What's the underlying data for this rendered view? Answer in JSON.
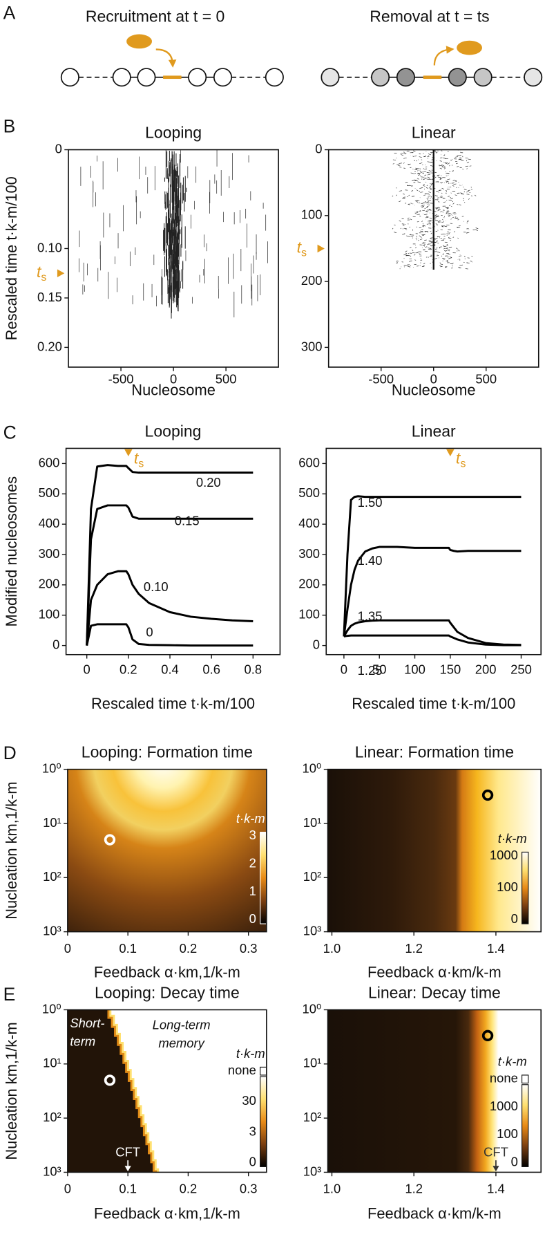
{
  "panel_labels": [
    "A",
    "B",
    "C",
    "D",
    "E"
  ],
  "schematic": {
    "left_title": "Recruitment at t = 0",
    "right_title": "Removal at t = ts"
  },
  "chart_data": [
    {
      "type": "raster",
      "title": "Looping",
      "xlabel": "Nucleosome",
      "ylabel": "Rescaled time t·k-m/100",
      "xlim": [
        -1000,
        1000
      ],
      "xticks": [
        -500,
        0,
        500
      ],
      "ylim": [
        0.22,
        0
      ],
      "yticks": [
        0,
        {
          "value": 0.1,
          "label": "0.10"
        },
        0.15,
        {
          "value": 0.2,
          "label": "0.20"
        }
      ],
      "annotations": [
        {
          "text": "t",
          "subscript": "s",
          "y": 0.125
        }
      ]
    },
    {
      "type": "raster",
      "title": "Linear",
      "xlabel": "Nucleosome",
      "xlim": [
        -1000,
        1000
      ],
      "xticks": [
        -500,
        0,
        500
      ],
      "ylim": [
        330,
        0
      ],
      "yticks": [
        0,
        100,
        200,
        300
      ],
      "annotations": [
        {
          "text": "t",
          "subscript": "s",
          "y": 150
        }
      ]
    },
    {
      "type": "line",
      "title": "Looping",
      "xlabel": "Rescaled time t·k-m/100",
      "ylabel": "Modified nucleosomes",
      "xlim": [
        -0.1,
        0.93
      ],
      "xticks": [
        0,
        0.2,
        0.4,
        0.6,
        0.8
      ],
      "ylim": [
        -30,
        650
      ],
      "yticks": [
        0,
        100,
        200,
        300,
        400,
        500,
        600
      ],
      "x": [
        0,
        0.02,
        0.05,
        0.1,
        0.15,
        0.19,
        0.2,
        0.22,
        0.25,
        0.3,
        0.4,
        0.5,
        0.6,
        0.7,
        0.8
      ],
      "series": [
        {
          "name": "0.20",
          "color": "#000000",
          "values": [
            0,
            450,
            590,
            595,
            592,
            592,
            585,
            572,
            570,
            570,
            570,
            570,
            570,
            570,
            570
          ]
        },
        {
          "name": "0.15",
          "color": "#000000",
          "values": [
            0,
            350,
            450,
            462,
            462,
            462,
            455,
            425,
            418,
            418,
            418,
            418,
            418,
            418,
            418
          ]
        },
        {
          "name": "0.10",
          "color": "#000000",
          "values": [
            0,
            150,
            200,
            235,
            245,
            245,
            235,
            200,
            170,
            140,
            110,
            95,
            88,
            83,
            80
          ]
        },
        {
          "name": "0",
          "color": "#000000",
          "values": [
            0,
            65,
            70,
            70,
            70,
            70,
            60,
            20,
            5,
            2,
            1,
            0,
            0,
            0,
            0
          ]
        }
      ],
      "annotations": [
        {
          "text": "t",
          "subscript": "s",
          "x": 0.2
        }
      ]
    },
    {
      "type": "line",
      "title": "Linear",
      "xlabel": "Rescaled time t·k-m/100",
      "xlim": [
        -25,
        278
      ],
      "xticks": [
        0,
        50,
        100,
        150,
        200,
        250
      ],
      "ylim": [
        -30,
        650
      ],
      "yticks": [
        0,
        100,
        200,
        300,
        400,
        500,
        600
      ],
      "x": [
        0,
        5,
        10,
        15,
        20,
        30,
        40,
        50,
        75,
        100,
        125,
        148,
        150,
        155,
        160,
        175,
        200,
        225,
        250
      ],
      "series": [
        {
          "name": "1.50",
          "color": "#000000",
          "values": [
            30,
            300,
            480,
            490,
            492,
            490,
            490,
            490,
            490,
            490,
            490,
            490,
            490,
            490,
            490,
            490,
            490,
            490,
            490
          ]
        },
        {
          "name": "1.40",
          "color": "#000000",
          "values": [
            30,
            120,
            200,
            250,
            280,
            310,
            320,
            325,
            325,
            322,
            322,
            322,
            315,
            312,
            310,
            312,
            312,
            312,
            312
          ]
        },
        {
          "name": "1.35",
          "color": "#000000",
          "values": [
            30,
            50,
            65,
            72,
            76,
            80,
            82,
            83,
            83,
            83,
            83,
            83,
            75,
            60,
            45,
            25,
            8,
            3,
            2
          ]
        },
        {
          "name": "1.25",
          "color": "#000000",
          "values": [
            30,
            32,
            33,
            33,
            33,
            33,
            33,
            33,
            33,
            33,
            33,
            33,
            30,
            25,
            20,
            10,
            3,
            1,
            1
          ]
        }
      ],
      "annotations": [
        {
          "text": "t",
          "subscript": "s",
          "x": 150
        }
      ]
    },
    {
      "type": "heatmap",
      "title": "Looping: Formation time",
      "xlabel": "Feedback α·km,1/k-m",
      "ylabel": "Nucleation km,1/k-m",
      "xlim": [
        0,
        0.33
      ],
      "xticks": [
        0,
        0.1,
        0.2,
        0.3
      ],
      "log_y": true,
      "ylim": [
        1000,
        1
      ],
      "yticks": [
        {
          "value": 1,
          "label": "10⁰"
        },
        {
          "value": 10,
          "label": "10¹"
        },
        {
          "value": 100,
          "label": "10²"
        },
        {
          "value": 1000,
          "label": "10³"
        }
      ],
      "colorbar": {
        "title": "t·k-m",
        "ticks": [
          3,
          2,
          1,
          0
        ]
      },
      "marker": {
        "x": 0.07,
        "y": 20
      }
    },
    {
      "type": "heatmap",
      "title": "Linear: Formation time",
      "xlabel": "Feedback α·km/k-m",
      "xlim": [
        0.99,
        1.51
      ],
      "xticks": [
        {
          "value": 1,
          "label": "1.0"
        },
        1.2,
        1.4
      ],
      "log_y": true,
      "ylim": [
        1000,
        1
      ],
      "yticks": [
        {
          "value": 1,
          "label": "10⁰"
        },
        {
          "value": 10,
          "label": "10¹"
        },
        {
          "value": 100,
          "label": "10²"
        },
        {
          "value": 1000,
          "label": "10³"
        }
      ],
      "colorbar": {
        "title": "t·k-m",
        "ticks": [
          1000,
          100,
          0
        ]
      },
      "marker": {
        "x": 1.38,
        "y": 3
      }
    },
    {
      "type": "heatmap",
      "title": "Looping: Decay time",
      "xlabel": "Feedback α·km,1/k-m",
      "ylabel": "Nucleation km,1/k-m",
      "xlim": [
        0,
        0.33
      ],
      "xticks": [
        0,
        0.1,
        0.2,
        0.3
      ],
      "log_y": true,
      "ylim": [
        1000,
        1
      ],
      "yticks": [
        {
          "value": 1,
          "label": "10⁰"
        },
        {
          "value": 10,
          "label": "10¹"
        },
        {
          "value": 100,
          "label": "10²"
        },
        {
          "value": 1000,
          "label": "10³"
        }
      ],
      "colorbar": {
        "title": "t·k-m",
        "ticks": [
          "none",
          30,
          3,
          0
        ]
      },
      "marker": {
        "x": 0.07,
        "y": 20
      },
      "region_labels": [
        [
          "Short-",
          "term"
        ],
        [
          "Long-term",
          "memory"
        ]
      ],
      "annotations": [
        {
          "text": "CFT",
          "x": 0.1
        }
      ]
    },
    {
      "type": "heatmap",
      "title": "Linear: Decay time",
      "xlabel": "Feedback α·km/k-m",
      "xlim": [
        0.99,
        1.51
      ],
      "xticks": [
        {
          "value": 1,
          "label": "1.0"
        },
        1.2,
        1.4
      ],
      "log_y": true,
      "ylim": [
        1000,
        1
      ],
      "yticks": [
        {
          "value": 1,
          "label": "10⁰"
        },
        {
          "value": 10,
          "label": "10¹"
        },
        {
          "value": 100,
          "label": "10²"
        },
        {
          "value": 1000,
          "label": "10³"
        }
      ],
      "colorbar": {
        "title": "t·k-m",
        "ticks": [
          "none",
          1000,
          100,
          0
        ]
      },
      "marker": {
        "x": 1.38,
        "y": 3
      },
      "annotations": [
        {
          "text": "CFT",
          "x": 1.4
        }
      ]
    }
  ]
}
